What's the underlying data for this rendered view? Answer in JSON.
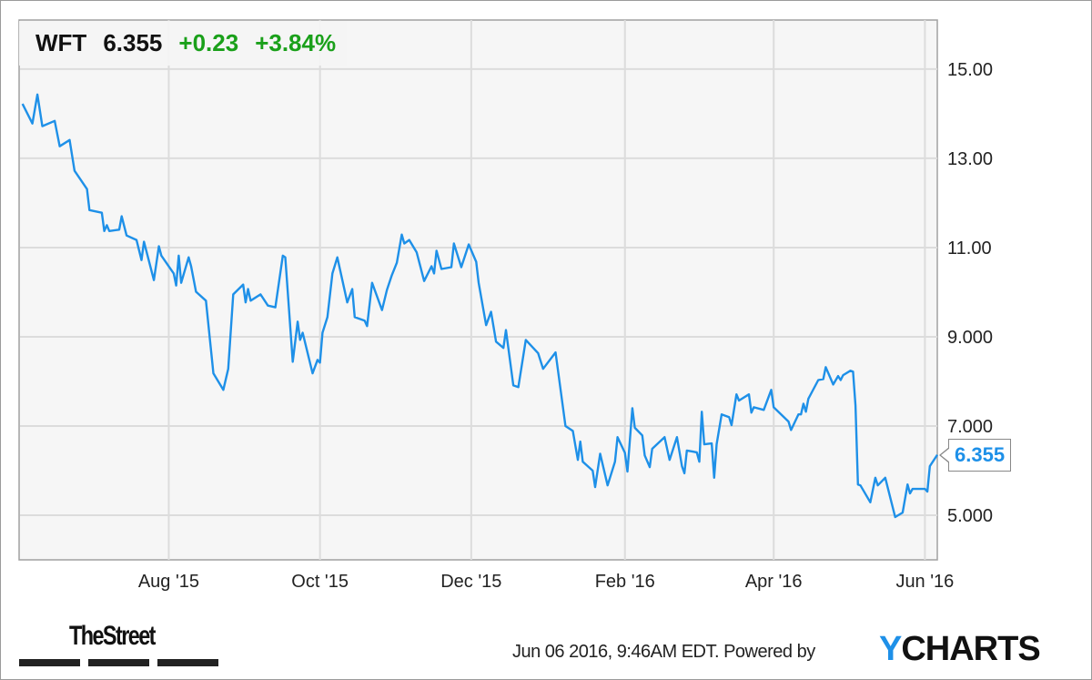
{
  "header": {
    "symbol": "WFT",
    "price": "6.355",
    "change": "+0.23",
    "change_pct": "+3.84%"
  },
  "last_value_label": "6.355",
  "footer": {
    "publisher_logo": "TheStreet",
    "timestamp": "Jun 06 2016, 9:46AM EDT. Powered by",
    "brand_logo_y": "Y",
    "brand_logo_rest": "CHARTS"
  },
  "colors": {
    "line": "#1e90e8",
    "positive": "#1aa01a",
    "grid": "#dcdcdc",
    "plot_bg": "#f6f6f6"
  },
  "chart_data": {
    "type": "line",
    "title": "",
    "xlabel": "",
    "ylabel": "",
    "ylim": [
      4.0,
      16.1
    ],
    "xlim": [
      "2015-06-02",
      "2016-06-06"
    ],
    "grid": true,
    "y_axis_side": "right",
    "y_ticks": [
      {
        "value": 15,
        "label": "15.00"
      },
      {
        "value": 13,
        "label": "13.00"
      },
      {
        "value": 11,
        "label": "11.00"
      },
      {
        "value": 9,
        "label": "9.000"
      },
      {
        "value": 7,
        "label": "7.000"
      },
      {
        "value": 5,
        "label": "5.000"
      }
    ],
    "x_ticks": [
      {
        "date": "2015-08-01",
        "label": "Aug '15"
      },
      {
        "date": "2015-10-01",
        "label": "Oct '15"
      },
      {
        "date": "2015-12-01",
        "label": "Dec '15"
      },
      {
        "date": "2016-02-01",
        "label": "Feb '16"
      },
      {
        "date": "2016-04-01",
        "label": "Apr '16"
      },
      {
        "date": "2016-06-01",
        "label": "Jun '16"
      }
    ],
    "series": [
      {
        "points": [
          [
            "2015-06-03",
            14.22
          ],
          [
            "2015-06-07",
            13.78
          ],
          [
            "2015-06-09",
            14.43
          ],
          [
            "2015-06-11",
            13.72
          ],
          [
            "2015-06-16",
            13.84
          ],
          [
            "2015-06-18",
            13.27
          ],
          [
            "2015-06-22",
            13.41
          ],
          [
            "2015-06-24",
            12.72
          ],
          [
            "2015-06-29",
            12.31
          ],
          [
            "2015-06-30",
            11.84
          ],
          [
            "2015-07-05",
            11.78
          ],
          [
            "2015-07-06",
            11.37
          ],
          [
            "2015-07-07",
            11.5
          ],
          [
            "2015-07-08",
            11.37
          ],
          [
            "2015-07-12",
            11.4
          ],
          [
            "2015-07-13",
            11.7
          ],
          [
            "2015-07-15",
            11.27
          ],
          [
            "2015-07-19",
            11.17
          ],
          [
            "2015-07-21",
            10.72
          ],
          [
            "2015-07-22",
            11.13
          ],
          [
            "2015-07-26",
            10.27
          ],
          [
            "2015-07-28",
            11.03
          ],
          [
            "2015-07-29",
            10.82
          ],
          [
            "2015-08-03",
            10.42
          ],
          [
            "2015-08-04",
            10.15
          ],
          [
            "2015-08-05",
            10.82
          ],
          [
            "2015-08-06",
            10.21
          ],
          [
            "2015-08-09",
            10.78
          ],
          [
            "2015-08-10",
            10.58
          ],
          [
            "2015-08-12",
            10.01
          ],
          [
            "2015-08-16",
            9.81
          ],
          [
            "2015-08-19",
            8.18
          ],
          [
            "2015-08-23",
            7.81
          ],
          [
            "2015-08-25",
            8.28
          ],
          [
            "2015-08-27",
            9.95
          ],
          [
            "2015-08-31",
            10.17
          ],
          [
            "2015-09-01",
            9.77
          ],
          [
            "2015-09-02",
            10.07
          ],
          [
            "2015-09-03",
            9.81
          ],
          [
            "2015-09-07",
            9.95
          ],
          [
            "2015-09-10",
            9.7
          ],
          [
            "2015-09-13",
            9.66
          ],
          [
            "2015-09-16",
            10.82
          ],
          [
            "2015-09-17",
            10.78
          ],
          [
            "2015-09-20",
            8.44
          ],
          [
            "2015-09-22",
            9.34
          ],
          [
            "2015-09-23",
            8.93
          ],
          [
            "2015-09-24",
            9.09
          ],
          [
            "2015-09-28",
            8.18
          ],
          [
            "2015-09-30",
            8.48
          ],
          [
            "2015-10-01",
            8.42
          ],
          [
            "2015-10-02",
            9.09
          ],
          [
            "2015-10-04",
            9.44
          ],
          [
            "2015-10-06",
            10.42
          ],
          [
            "2015-10-08",
            10.78
          ],
          [
            "2015-10-12",
            9.77
          ],
          [
            "2015-10-14",
            10.07
          ],
          [
            "2015-10-15",
            9.44
          ],
          [
            "2015-10-19",
            9.36
          ],
          [
            "2015-10-20",
            9.24
          ],
          [
            "2015-10-22",
            10.21
          ],
          [
            "2015-10-26",
            9.6
          ],
          [
            "2015-10-28",
            10.05
          ],
          [
            "2015-10-30",
            10.38
          ],
          [
            "2015-11-01",
            10.66
          ],
          [
            "2015-11-03",
            11.29
          ],
          [
            "2015-11-04",
            11.09
          ],
          [
            "2015-11-06",
            11.17
          ],
          [
            "2015-11-09",
            10.89
          ],
          [
            "2015-11-12",
            10.25
          ],
          [
            "2015-11-15",
            10.58
          ],
          [
            "2015-11-16",
            10.42
          ],
          [
            "2015-11-17",
            10.93
          ],
          [
            "2015-11-19",
            10.52
          ],
          [
            "2015-11-23",
            10.56
          ],
          [
            "2015-11-24",
            11.09
          ],
          [
            "2015-11-27",
            10.56
          ],
          [
            "2015-11-30",
            11.07
          ],
          [
            "2015-12-03",
            10.68
          ],
          [
            "2015-12-04",
            10.21
          ],
          [
            "2015-12-07",
            9.26
          ],
          [
            "2015-12-09",
            9.56
          ],
          [
            "2015-12-11",
            8.89
          ],
          [
            "2015-12-14",
            8.75
          ],
          [
            "2015-12-15",
            9.15
          ],
          [
            "2015-12-18",
            7.91
          ],
          [
            "2015-12-20",
            7.87
          ],
          [
            "2015-12-23",
            8.93
          ],
          [
            "2015-12-28",
            8.63
          ],
          [
            "2015-12-30",
            8.28
          ],
          [
            "2016-01-04",
            8.65
          ],
          [
            "2016-01-08",
            7.0
          ],
          [
            "2016-01-11",
            6.89
          ],
          [
            "2016-01-13",
            6.24
          ],
          [
            "2016-01-14",
            6.65
          ],
          [
            "2016-01-15",
            6.2
          ],
          [
            "2016-01-19",
            6.0
          ],
          [
            "2016-01-20",
            5.63
          ],
          [
            "2016-01-22",
            6.38
          ],
          [
            "2016-01-25",
            5.67
          ],
          [
            "2016-01-28",
            6.2
          ],
          [
            "2016-01-29",
            6.75
          ],
          [
            "2016-02-01",
            6.4
          ],
          [
            "2016-02-02",
            5.98
          ],
          [
            "2016-02-04",
            7.4
          ],
          [
            "2016-02-05",
            6.96
          ],
          [
            "2016-02-08",
            6.79
          ],
          [
            "2016-02-09",
            6.34
          ],
          [
            "2016-02-11",
            6.08
          ],
          [
            "2016-02-12",
            6.49
          ],
          [
            "2016-02-17",
            6.75
          ],
          [
            "2016-02-19",
            6.24
          ],
          [
            "2016-02-22",
            6.75
          ],
          [
            "2016-02-24",
            6.1
          ],
          [
            "2016-02-25",
            5.94
          ],
          [
            "2016-02-26",
            6.45
          ],
          [
            "2016-03-01",
            6.41
          ],
          [
            "2016-03-02",
            6.2
          ],
          [
            "2016-03-03",
            7.32
          ],
          [
            "2016-03-04",
            6.59
          ],
          [
            "2016-03-07",
            6.61
          ],
          [
            "2016-03-08",
            5.84
          ],
          [
            "2016-03-09",
            6.59
          ],
          [
            "2016-03-11",
            7.26
          ],
          [
            "2016-03-14",
            7.2
          ],
          [
            "2016-03-15",
            7.02
          ],
          [
            "2016-03-17",
            7.71
          ],
          [
            "2016-03-18",
            7.57
          ],
          [
            "2016-03-22",
            7.71
          ],
          [
            "2016-03-23",
            7.3
          ],
          [
            "2016-03-24",
            7.42
          ],
          [
            "2016-03-28",
            7.36
          ],
          [
            "2016-03-31",
            7.81
          ],
          [
            "2016-04-01",
            7.42
          ],
          [
            "2016-04-07",
            7.1
          ],
          [
            "2016-04-08",
            6.91
          ],
          [
            "2016-04-11",
            7.26
          ],
          [
            "2016-04-12",
            7.26
          ],
          [
            "2016-04-13",
            7.5
          ],
          [
            "2016-04-14",
            7.32
          ],
          [
            "2016-04-15",
            7.61
          ],
          [
            "2016-04-19",
            8.03
          ],
          [
            "2016-04-21",
            8.05
          ],
          [
            "2016-04-22",
            8.32
          ],
          [
            "2016-04-25",
            7.93
          ],
          [
            "2016-04-27",
            8.12
          ],
          [
            "2016-04-28",
            8.03
          ],
          [
            "2016-04-29",
            8.14
          ],
          [
            "2016-05-02",
            8.24
          ],
          [
            "2016-05-03",
            8.22
          ],
          [
            "2016-05-04",
            7.46
          ],
          [
            "2016-05-05",
            5.69
          ],
          [
            "2016-05-06",
            5.67
          ],
          [
            "2016-05-10",
            5.29
          ],
          [
            "2016-05-12",
            5.84
          ],
          [
            "2016-05-13",
            5.67
          ],
          [
            "2016-05-16",
            5.84
          ],
          [
            "2016-05-20",
            4.96
          ],
          [
            "2016-05-23",
            5.06
          ],
          [
            "2016-05-25",
            5.69
          ],
          [
            "2016-05-26",
            5.49
          ],
          [
            "2016-05-27",
            5.59
          ],
          [
            "2016-06-01",
            5.59
          ],
          [
            "2016-06-02",
            5.53
          ],
          [
            "2016-06-03",
            6.1
          ],
          [
            "2016-06-06",
            6.355
          ]
        ]
      }
    ]
  }
}
